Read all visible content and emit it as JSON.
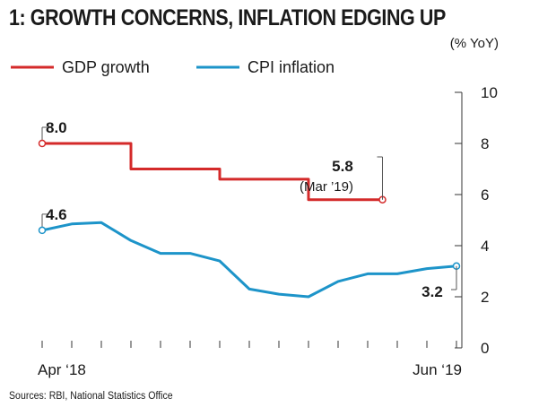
{
  "chart_data": {
    "type": "line",
    "title": "1: GROWTH CONCERNS, INFLATION EDGING UP",
    "unit": "(% YoY)",
    "source": "Sources: RBI, National Statistics Office",
    "x_labels": [
      "Apr ‘18",
      "Jun ‘19"
    ],
    "ylim": [
      0,
      10
    ],
    "yticks": [
      0,
      2,
      4,
      6,
      8,
      10
    ],
    "grid": false,
    "legend_position": "top-left",
    "series": [
      {
        "name": "GDP growth",
        "color": "#d42a2a",
        "style": "step",
        "points": [
          [
            0,
            8.0
          ],
          [
            3,
            8.0
          ],
          [
            3,
            7.0
          ],
          [
            6,
            7.0
          ],
          [
            6,
            6.6
          ],
          [
            9,
            6.6
          ],
          [
            9,
            5.8
          ],
          [
            11.5,
            5.8
          ]
        ],
        "start_label": "8.0",
        "end_label": "5.8",
        "end_note": "(Mar ’19)"
      },
      {
        "name": "CPI inflation",
        "color": "#1d94c9",
        "style": "line",
        "points": [
          [
            0,
            4.6
          ],
          [
            1,
            4.85
          ],
          [
            2,
            4.9
          ],
          [
            3,
            4.2
          ],
          [
            4,
            3.7
          ],
          [
            5,
            3.7
          ],
          [
            6,
            3.4
          ],
          [
            7,
            2.3
          ],
          [
            8,
            2.1
          ],
          [
            9,
            2.0
          ],
          [
            10,
            2.6
          ],
          [
            11,
            2.9
          ],
          [
            12,
            2.9
          ],
          [
            13,
            3.1
          ],
          [
            14,
            3.2
          ]
        ],
        "start_label": "4.6",
        "end_label": "3.2"
      }
    ]
  }
}
